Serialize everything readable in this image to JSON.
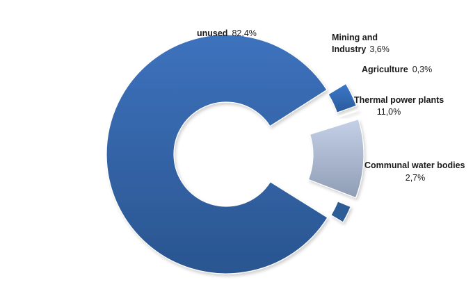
{
  "chart_data": {
    "type": "pie",
    "donut": true,
    "title": "",
    "legend": "none",
    "slices": [
      {
        "label": "unused",
        "value": 82.4,
        "display": "82,4%",
        "color": "#2f5f9e",
        "exploded": false
      },
      {
        "label": "Mining and Industry",
        "value": 3.6,
        "display": "3,6%",
        "color": "#2f68b5",
        "exploded": true
      },
      {
        "label": "Agriculture",
        "value": 0.3,
        "display": "0,3%",
        "color": "#9aa6b8",
        "exploded": true
      },
      {
        "label": "Thermal power plants",
        "value": 11.0,
        "display": "11,0%",
        "color": "#a9b8d4",
        "exploded": true
      },
      {
        "label": "Communal water bodies",
        "value": 2.7,
        "display": "2,7%",
        "color": "#2d5c97",
        "exploded": true
      }
    ]
  }
}
